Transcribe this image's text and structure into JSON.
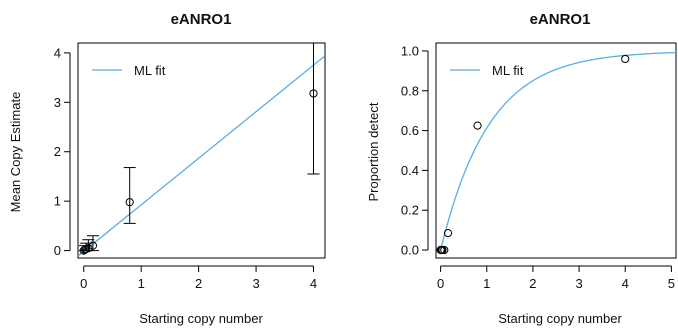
{
  "colors": {
    "fit": "#5aaee0",
    "frame": "#000000",
    "points": "#000000"
  },
  "chart_data": [
    {
      "type": "scatter",
      "title": "eANRO1",
      "xlabel": "Starting copy number",
      "ylabel": "Mean Copy Estimate",
      "xlim": [
        -0.1,
        4.2
      ],
      "ylim": [
        -0.15,
        4.2
      ],
      "xticks": [
        0,
        1,
        2,
        3,
        4
      ],
      "yticks": [
        0,
        1,
        2,
        3,
        4
      ],
      "xtick_labels": [
        "0",
        "1",
        "2",
        "3",
        "4"
      ],
      "ytick_labels": [
        "0",
        "1",
        "2",
        "3",
        "4"
      ],
      "legend": {
        "label": "ML fit",
        "position": "top-left"
      },
      "fit_line": {
        "x": [
          -0.1,
          4.2
        ],
        "y": [
          -0.11,
          3.94
        ]
      },
      "points": [
        {
          "x": 0.0,
          "y": 0.0,
          "lo": 0.0,
          "hi": 0.05
        },
        {
          "x": 0.02,
          "y": 0.02,
          "lo": 0.0,
          "hi": 0.1
        },
        {
          "x": 0.04,
          "y": 0.03,
          "lo": 0.0,
          "hi": 0.15
        },
        {
          "x": 0.08,
          "y": 0.05,
          "lo": 0.0,
          "hi": 0.22
        },
        {
          "x": 0.16,
          "y": 0.1,
          "lo": 0.0,
          "hi": 0.3
        },
        {
          "x": 0.8,
          "y": 0.98,
          "lo": 0.55,
          "hi": 1.68
        },
        {
          "x": 4.0,
          "y": 3.18,
          "lo": 1.55,
          "hi": 4.2
        }
      ]
    },
    {
      "type": "scatter",
      "title": "eANRO1",
      "xlabel": "Starting copy number",
      "ylabel": "Proportion detect",
      "xlim": [
        -0.1,
        5.1
      ],
      "ylim": [
        -0.04,
        1.04
      ],
      "xticks": [
        0,
        1,
        2,
        3,
        4,
        5
      ],
      "yticks": [
        0.0,
        0.2,
        0.4,
        0.6,
        0.8,
        1.0
      ],
      "xtick_labels": [
        "0",
        "1",
        "2",
        "3",
        "4",
        "5"
      ],
      "ytick_labels": [
        "0.0",
        "0.2",
        "0.4",
        "0.6",
        "0.8",
        "1.0"
      ],
      "legend": {
        "label": "ML fit",
        "position": "top-left"
      },
      "fit_curve": {
        "model": "1 - exp(-k*x)",
        "k": 0.95,
        "x_range": [
          0,
          5.1
        ]
      },
      "points": [
        {
          "x": 0.0,
          "y": 0.0
        },
        {
          "x": 0.02,
          "y": 0.0
        },
        {
          "x": 0.04,
          "y": 0.0
        },
        {
          "x": 0.08,
          "y": 0.0
        },
        {
          "x": 0.16,
          "y": 0.085
        },
        {
          "x": 0.8,
          "y": 0.625
        },
        {
          "x": 4.0,
          "y": 0.96
        }
      ]
    }
  ]
}
